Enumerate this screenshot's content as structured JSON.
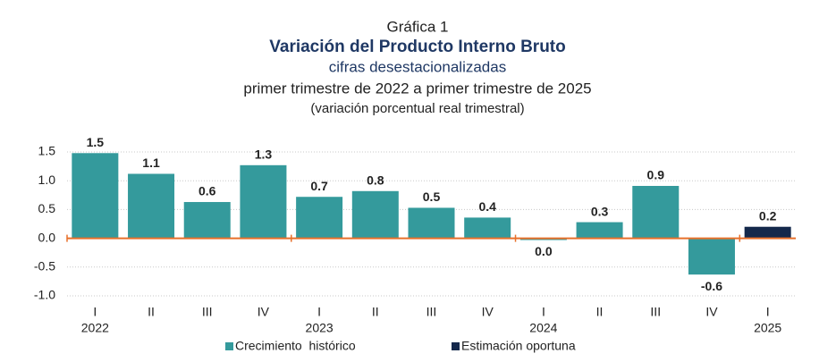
{
  "chart_data": {
    "type": "bar",
    "chart_label": "Gráfica 1",
    "title": "Variación del Producto Interno Bruto",
    "subtitle": "cifras desestacionalizadas",
    "period": "primer trimestre de 2022 a primer trimestre de 2025",
    "units": "(variación porcentual real trimestral)",
    "groups": [
      {
        "name": "2022",
        "categories": [
          "I",
          "II",
          "III",
          "IV"
        ]
      },
      {
        "name": "2023",
        "categories": [
          "I",
          "II",
          "III",
          "IV"
        ]
      },
      {
        "name": "2024",
        "categories": [
          "I",
          "II",
          "III",
          "IV"
        ]
      },
      {
        "name": "2025",
        "categories": [
          "I"
        ]
      }
    ],
    "series": [
      {
        "name": "Crecimiento  histórico",
        "color": "#349a9c",
        "values": [
          1.48,
          1.12,
          0.63,
          1.27,
          0.72,
          0.82,
          0.53,
          0.36,
          -0.03,
          0.28,
          0.91,
          -0.63,
          null
        ],
        "value_labels": [
          "1.5",
          "1.1",
          "0.6",
          "1.3",
          "0.7",
          "0.8",
          "0.5",
          "0.4",
          "0.0",
          "0.3",
          "0.9",
          "-0.6",
          null
        ]
      },
      {
        "name": "Estimación oportuna",
        "color": "#14284b",
        "values": [
          null,
          null,
          null,
          null,
          null,
          null,
          null,
          null,
          null,
          null,
          null,
          null,
          0.2
        ],
        "value_labels": [
          null,
          null,
          null,
          null,
          null,
          null,
          null,
          null,
          null,
          null,
          null,
          null,
          "0.2"
        ]
      }
    ],
    "ylim": [
      -1.0,
      1.5
    ],
    "yticks": [
      {
        "value": -1.0,
        "label": "-1.0"
      },
      -0.5,
      {
        "value": 0,
        "label": "0.0"
      },
      0.5,
      {
        "value": 1.0,
        "label": "1.0"
      },
      1.5
    ],
    "grid": true,
    "zero_line_color": "#e8702a"
  }
}
